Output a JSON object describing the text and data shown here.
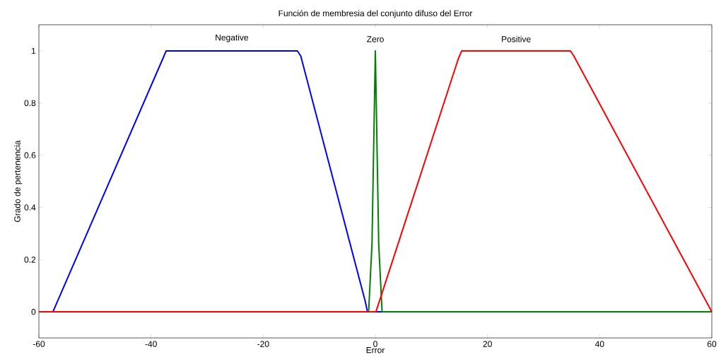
{
  "chart_data": {
    "type": "line",
    "title": "Función de membresia del conjunto difuso del Error",
    "xlabel": "Error",
    "ylabel": "Grado de pertenencia",
    "xlim": [
      -60,
      60
    ],
    "ylim": [
      -0.1,
      1.1
    ],
    "xticks": [
      -60,
      -40,
      -20,
      0,
      20,
      40,
      60
    ],
    "yticks": [
      0,
      0.2,
      0.4,
      0.6,
      0.8,
      1
    ],
    "grid": false,
    "series": [
      {
        "name": "Negative",
        "color": "#0000ff",
        "x": [
          -60,
          -57.5,
          -37.9,
          -37.3,
          -13.9,
          -13.3,
          -1.8,
          -1.4,
          60
        ],
        "values": [
          0,
          0,
          0.97,
          1,
          1,
          0.98,
          0.04,
          0,
          0
        ]
      },
      {
        "name": "Zero",
        "color": "#008000",
        "x": [
          -60,
          -1.2,
          -0.6,
          0,
          0.6,
          1.2,
          60
        ],
        "values": [
          0,
          0,
          0.26,
          1,
          0.26,
          0,
          0
        ]
      },
      {
        "name": "Positive",
        "color": "#ff0000",
        "x": [
          -60,
          0.1,
          14.8,
          15.4,
          34.8,
          35.4,
          60
        ],
        "values": [
          0,
          0,
          0.97,
          1,
          1,
          0.98,
          0
        ]
      }
    ]
  }
}
